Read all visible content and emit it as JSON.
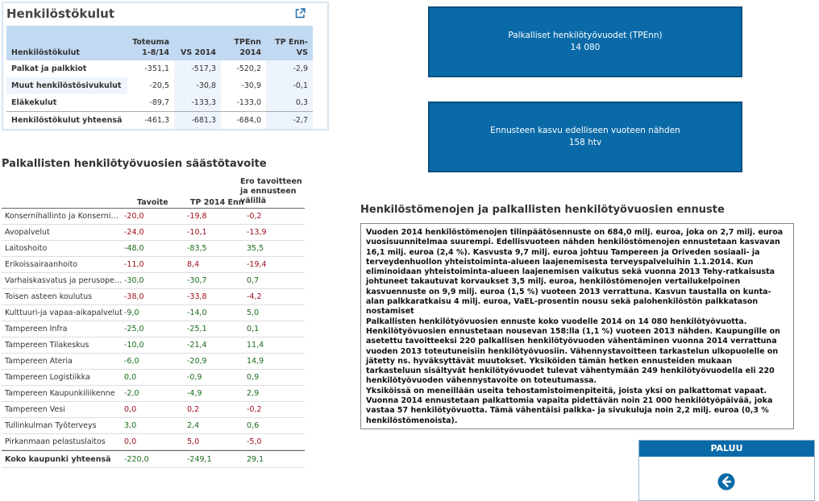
{
  "costs": {
    "title": "Henkilöstökulut",
    "headers": [
      "Henkilöstökulut",
      "Toteuma 1-8/14",
      "VS 2014",
      "TPEnn 2014",
      "TP Enn-VS"
    ],
    "rows": [
      {
        "label": "Palkat ja palkkiot",
        "v": [
          "-351,1",
          "-517,3",
          "-520,2",
          "-2,9"
        ]
      },
      {
        "label": "Muut henkilöstösivukulut",
        "v": [
          "-20,5",
          "-30,8",
          "-30,9",
          "-0,1"
        ]
      },
      {
        "label": "Eläkekulut",
        "v": [
          "-89,7",
          "-133,3",
          "-133,0",
          "0,3"
        ]
      },
      {
        "label": "Henkilöstökulut yhteensä",
        "v": [
          "-461,3",
          "-681,3",
          "-684,0",
          "-2,7"
        ]
      }
    ]
  },
  "savings": {
    "title": "Palkallisten henkilötyövuosien säästötavoite",
    "headers": [
      "Tavoite",
      "TP 2014 Enn",
      "Ero tavoitteen ja ennusteen välillä"
    ],
    "rows": [
      {
        "label": "Konsernihallinto ja Konsernipal...",
        "v": [
          "-20,0",
          "-19,8",
          "-0,2"
        ]
      },
      {
        "label": "Avopalvelut",
        "v": [
          "-24,0",
          "-10,1",
          "-13,9"
        ]
      },
      {
        "label": "Laitoshoito",
        "v": [
          "-48,0",
          "-83,5",
          "35,5"
        ]
      },
      {
        "label": "Erikoissairaanhoito",
        "v": [
          "-11,0",
          "8,4",
          "-19,4"
        ]
      },
      {
        "label": "Varhaiskasvatus ja perusopetus",
        "v": [
          "-30,0",
          "-30,7",
          "0,7"
        ]
      },
      {
        "label": "Toisen asteen koulutus",
        "v": [
          "-38,0",
          "-33,8",
          "-4,2"
        ]
      },
      {
        "label": "Kulttuuri-ja vapaa-aikapalvelut",
        "v": [
          "-9,0",
          "-14,0",
          "5,0"
        ]
      },
      {
        "label": "Tampereen Infra",
        "v": [
          "-25,0",
          "-25,1",
          "0,1"
        ]
      },
      {
        "label": "Tampereen Tilakeskus",
        "v": [
          "-10,0",
          "-21,4",
          "11,4"
        ]
      },
      {
        "label": "Tampereen Ateria",
        "v": [
          "-6,0",
          "-20,9",
          "14,9"
        ]
      },
      {
        "label": "Tampereen Logistiikka",
        "v": [
          "0,0",
          "-0,9",
          "0,9"
        ]
      },
      {
        "label": "Tampereen Kaupunkiliikenne",
        "v": [
          "-2,0",
          "-4,9",
          "2,9"
        ]
      },
      {
        "label": "Tampereen Vesi",
        "v": [
          "0,0",
          "0,2",
          "-0,2"
        ]
      },
      {
        "label": "Tullinkulman Työterveys",
        "v": [
          "3,0",
          "2,4",
          "0,6"
        ]
      },
      {
        "label": "Pirkanmaan pelastuslaitos",
        "v": [
          "0,0",
          "5,0",
          "-5,0"
        ]
      },
      {
        "label": "Koko kaupunki yhteensä",
        "v": [
          "-220,0",
          "-249,1",
          "29,1"
        ]
      }
    ],
    "colors": [
      [
        "neg",
        "neg",
        "neg"
      ],
      [
        "neg",
        "neg",
        "neg"
      ],
      [
        "pos",
        "pos",
        "pos"
      ],
      [
        "neg",
        "neg",
        "neg"
      ],
      [
        "pos",
        "pos",
        "pos"
      ],
      [
        "neg",
        "neg",
        "neg"
      ],
      [
        "pos",
        "pos",
        "pos"
      ],
      [
        "pos",
        "pos",
        "pos"
      ],
      [
        "pos",
        "pos",
        "pos"
      ],
      [
        "pos",
        "pos",
        "pos"
      ],
      [
        "pos",
        "pos",
        "pos"
      ],
      [
        "pos",
        "pos",
        "pos"
      ],
      [
        "neg",
        "neg",
        "neg"
      ],
      [
        "pos",
        "pos",
        "pos"
      ],
      [
        "neg",
        "neg",
        "neg"
      ],
      [
        "pos",
        "pos",
        "pos"
      ]
    ]
  },
  "kpi1": {
    "label": "Palkalliset henkilötyövuodet (TPEnn)",
    "value": "14 080"
  },
  "kpi2": {
    "label": "Ennusteen kasvu edelliseen vuoteen nähden",
    "value": "158 htv"
  },
  "forecast": {
    "title": "Henkilöstömenojen ja palkallisten henkilötyövuosien ennuste",
    "paragraphs": [
      "Vuoden 2014 henkilöstömenojen tilinpäätösennuste on 684,0 milj. euroa, joka on 2,7 milj. euroa vuosisuunnitelmaa suurempi. Edellisvuoteen nähden henkilöstömenojen ennustetaan kasvavan 16,1 milj. euroa (2,4 %). Kasvusta 9,7 milj. euroa johtuu Tampereen ja Oriveden sosiaali- ja terveydenhuollon yhteistoiminta-alueen laajenemisesta terveyspalveluihin 1.1.2014. Kun eliminoidaan yhteistoiminta-alueen laajenemisen vaikutus sekä vuonna 2013 Tehy-ratkaisusta johtuneet takautuvat korvaukset 3,5 milj. euroa, henkilöstömenojen vertailukelpoinen kasvuennuste on 9,9 milj. euroa (1,5 %) vuoteen 2013 verrattuna. Kasvun taustalla on kunta-alan palkkaratkaisu 4 milj. euroa, VaEL-prosentin nousu sekä palohenkilöstön palkkatason nostamiset",
      "Palkallisten henkilötyövuosien ennuste koko vuodelle 2014 on 14 080 henkilötyövuotta. Henkilötyövuosien ennustetaan nousevan 158:lla (1,1 %) vuoteen 2013 nähden. Kaupungille on asetettu tavoitteeksi 220 palkallisen henkilötyövuoden vähentäminen vuonna 2014 verrattuna vuoden 2013 toteutuneisiin henkilötyövuosiin. Vähennystavoitteen tarkastelun ulkopuolelle on jätetty ns. hyväksyttävät muutokset. Yksiköiden tämän hetken ennusteiden mukaan tarkasteluun sisältyvät henkilötyövuodet tulevat vähentymään 249 henkilötyövuodella eli 220 henkilötyövuoden vähennystavoite on toteutumassa.",
      "Yksiköissä on meneillään useita tehostamistoimenpiteitä, joista yksi on palkattomat vapaat. Vuonna 2014 ennustetaan palkattomia vapaita pidettävän noin 21 000 henkilötyöpäivää, joka vastaa 57 henkilötyövuotta. Tämä vähentäisi palkka- ja sivukuluja noin 2,2 milj. euroa (0,3 % henkilöstömenoista)."
    ]
  },
  "back": {
    "label": "PALUU",
    "icon": "arrow-left-circle-icon"
  },
  "external_icon": "external-link-icon"
}
